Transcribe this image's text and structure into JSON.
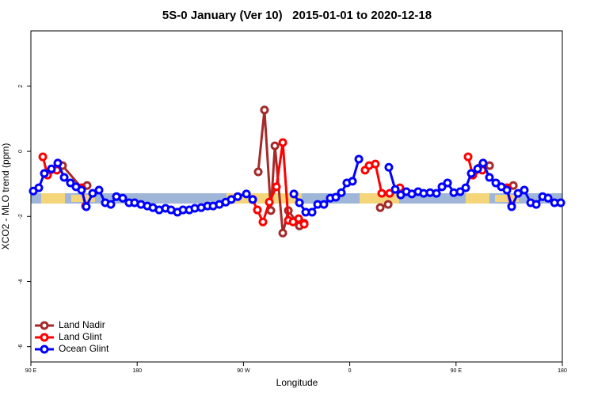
{
  "chart_data": {
    "type": "line",
    "title": "5S-0 January (Ver 10)   2015-01-01 to 2020-12-18",
    "x_label": "Longitude",
    "y_label": "XCO2 - MLO trend (ppm)",
    "xlim": [
      90,
      540
    ],
    "ylim": [
      -6.47,
      3.7
    ],
    "xticks": [
      {
        "value": 90,
        "label": "90 E"
      },
      180,
      {
        "value": 270,
        "label": "90 W"
      },
      {
        "value": 360,
        "label": "0"
      },
      {
        "value": 450,
        "label": "90 E"
      },
      {
        "value": 540,
        "label": "180"
      }
    ],
    "yticks": [
      2,
      0,
      -2,
      -4,
      -6
    ],
    "legend_position": "bottom-left",
    "series": [
      {
        "name": "Land Nadir",
        "color": "#a52a2a",
        "x": [
          116.8,
          132.9,
          137.6,
          null,
          282.5,
          287.8,
          293.2,
          296.6,
          303.3,
          308.0,
          317.4,
          321.4,
          null,
          385.8,
          392.5,
          null,
          469.6,
          478.4,
          null,
          493.1,
          498.5
        ],
        "values": [
          -0.44,
          -1.12,
          -1.05,
          null,
          -0.63,
          1.27,
          -1.82,
          0.17,
          -2.51,
          -1.82,
          -2.29,
          -2.21,
          null,
          -1.73,
          -1.63,
          null,
          -0.51,
          -0.44,
          null,
          -1.12,
          -1.05
        ]
      },
      {
        "name": "Land Glint",
        "color": "#ff0000",
        "x": [
          100.1,
          104.1,
          112.1,
          null,
          132.9,
          136.3,
          null,
          277.8,
          281.8,
          286.5,
          291.9,
          297.9,
          303.3,
          308.0,
          312.0,
          316.7,
          321.4,
          null,
          373.0,
          376.4,
          381.7,
          387.1,
          393.8,
          402.5,
          null,
          460.2,
          464.2,
          472.3,
          null,
          493.1,
          497.1
        ],
        "values": [
          -0.17,
          -0.73,
          -0.58,
          null,
          -1.12,
          -1.68,
          null,
          -1.48,
          -1.8,
          -2.17,
          -1.56,
          -1.09,
          0.27,
          -2.12,
          -2.17,
          -2.07,
          -2.24,
          null,
          -0.58,
          -0.44,
          -0.39,
          -1.29,
          -1.29,
          -1.12,
          null,
          -0.17,
          -0.73,
          -0.58,
          null,
          -1.12,
          -1.68
        ]
      },
      {
        "name": "Ocean Glint",
        "color": "#0000ff",
        "x": [
          92.0,
          96.7,
          101.4,
          107.4,
          112.8,
          118.2,
          123.5,
          128.2,
          132.9,
          136.9,
          142.3,
          147.7,
          153.0,
          157.7,
          162.4,
          167.8,
          173.1,
          177.8,
          183.2,
          188.6,
          193.3,
          198.6,
          204.0,
          208.7,
          214.1,
          218.8,
          224.1,
          228.8,
          234.2,
          239.6,
          244.3,
          249.6,
          255.0,
          259.7,
          265.1,
          272.5,
          277.8,
          null,
          312.7,
          317.4,
          322.7,
          328.1,
          332.8,
          338.1,
          343.5,
          348.2,
          352.9,
          357.6,
          362.3,
          367.7,
          null,
          393.1,
          398.5,
          403.2,
          407.9,
          412.6,
          417.9,
          422.6,
          428.0,
          433.4,
          438.1,
          442.8,
          448.1,
          453.5,
          458.2,
          462.9,
          468.3,
          472.9,
          478.3,
          483.7,
          488.4,
          493.1,
          497.1,
          502.5,
          507.8,
          513.2,
          517.9,
          523.3,
          528.0,
          533.4,
          538.7
        ],
        "values": [
          -1.22,
          -1.12,
          -0.68,
          -0.54,
          -0.36,
          -0.8,
          -0.97,
          -1.09,
          -1.19,
          -1.7,
          -1.29,
          -1.19,
          -1.58,
          -1.63,
          -1.39,
          -1.44,
          -1.58,
          -1.58,
          -1.63,
          -1.68,
          -1.73,
          -1.8,
          -1.75,
          -1.8,
          -1.87,
          -1.8,
          -1.8,
          -1.75,
          -1.73,
          -1.68,
          -1.68,
          -1.63,
          -1.56,
          -1.48,
          -1.39,
          -1.31,
          -1.48,
          null,
          -1.31,
          -1.58,
          -1.87,
          -1.87,
          -1.63,
          -1.63,
          -1.44,
          -1.41,
          -1.27,
          -0.97,
          -0.92,
          -0.24,
          null,
          -0.49,
          -1.17,
          -1.34,
          -1.24,
          -1.31,
          -1.24,
          -1.29,
          -1.27,
          -1.29,
          -1.09,
          -0.97,
          -1.27,
          -1.24,
          -1.12,
          -0.68,
          -0.54,
          -0.36,
          -0.8,
          -0.97,
          -1.09,
          -1.19,
          -1.7,
          -1.29,
          -1.19,
          -1.58,
          -1.63,
          -1.39,
          -1.44,
          -1.58,
          -1.58
        ]
      }
    ]
  }
}
